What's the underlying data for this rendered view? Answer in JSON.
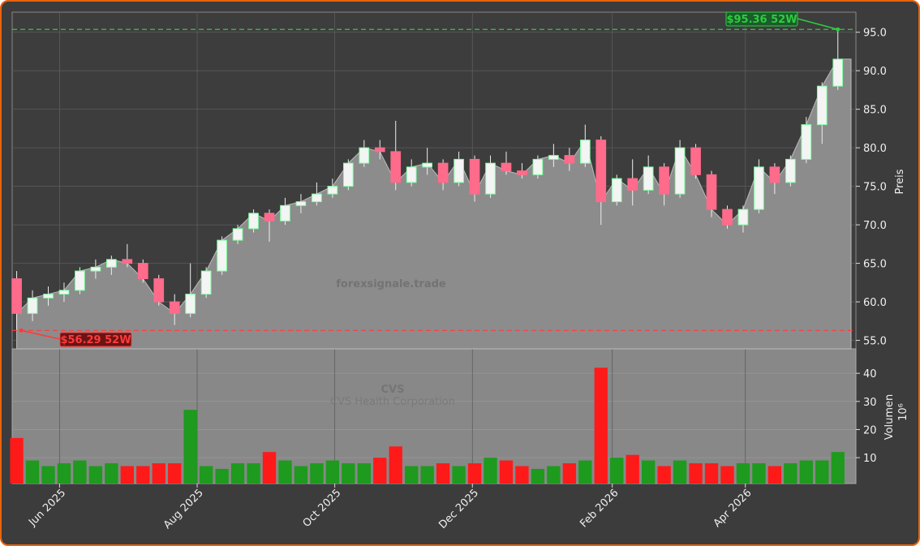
{
  "chart_data": {
    "type": "candlestick",
    "watermark": "forexsignale.trade",
    "symbol": "CVS",
    "company": "CVS Health Corporation",
    "x": [
      2,
      9,
      16,
      23,
      30,
      37,
      44,
      51,
      58,
      65,
      72,
      79,
      86,
      93,
      100,
      107,
      114,
      121,
      128,
      135,
      142,
      149,
      156,
      163,
      170,
      177,
      184,
      191,
      198,
      205,
      212,
      219,
      226,
      233,
      240,
      247,
      254,
      261,
      268,
      275,
      282,
      289,
      296,
      303,
      310,
      317,
      324,
      331,
      338,
      345,
      352,
      359,
      366
    ],
    "open": [
      63.0,
      58.5,
      60.5,
      61.0,
      61.5,
      64.0,
      64.5,
      65.5,
      65.0,
      63.0,
      60.0,
      58.5,
      61.0,
      64.0,
      68.0,
      69.5,
      71.5,
      70.5,
      72.5,
      73.0,
      74.0,
      75.0,
      78.0,
      80.0,
      79.5,
      75.5,
      77.5,
      78.0,
      75.5,
      78.5,
      74.0,
      78.0,
      77.0,
      76.5,
      78.5,
      79.0,
      78.0,
      81.0,
      73.0,
      76.0,
      74.5,
      77.5,
      74.0,
      80.0,
      76.5,
      72.0,
      70.0,
      72.0,
      77.5,
      75.5,
      78.5,
      83.0,
      88.0
    ],
    "high": [
      64.0,
      61.5,
      62.0,
      62.5,
      64.5,
      65.5,
      66.0,
      67.5,
      65.5,
      63.5,
      61.0,
      65.0,
      64.5,
      68.5,
      70.0,
      72.0,
      72.0,
      73.5,
      74.0,
      75.5,
      76.0,
      78.5,
      81.0,
      81.0,
      83.5,
      78.5,
      80.0,
      78.5,
      79.5,
      79.0,
      79.0,
      79.5,
      78.0,
      79.0,
      80.5,
      80.0,
      83.0,
      81.5,
      76.5,
      78.5,
      79.0,
      78.0,
      81.0,
      80.5,
      77.0,
      72.5,
      72.5,
      78.5,
      78.0,
      79.0,
      84.0,
      88.5,
      95.36
    ],
    "low": [
      56.29,
      57.5,
      59.5,
      60.0,
      61.0,
      63.0,
      63.5,
      64.5,
      62.5,
      59.5,
      57.0,
      58.0,
      60.5,
      63.5,
      67.5,
      69.0,
      67.8,
      70.0,
      71.5,
      72.5,
      73.5,
      74.5,
      77.5,
      78.5,
      74.5,
      75.0,
      76.5,
      74.5,
      75.0,
      73.0,
      73.5,
      76.5,
      76.0,
      76.0,
      77.5,
      77.0,
      77.5,
      70.0,
      72.5,
      72.5,
      74.0,
      72.5,
      73.5,
      76.0,
      71.0,
      69.5,
      69.0,
      71.5,
      74.0,
      75.0,
      78.0,
      80.5,
      87.5
    ],
    "close": [
      58.5,
      60.5,
      61.0,
      61.5,
      64.0,
      64.5,
      65.5,
      65.0,
      63.0,
      60.0,
      58.5,
      61.0,
      64.0,
      68.0,
      69.5,
      71.5,
      70.5,
      72.5,
      73.0,
      74.0,
      75.0,
      78.0,
      80.0,
      79.5,
      75.5,
      77.5,
      78.0,
      75.5,
      78.5,
      74.0,
      78.0,
      77.0,
      76.5,
      78.5,
      79.0,
      78.0,
      81.0,
      73.0,
      76.0,
      74.5,
      77.5,
      74.0,
      80.0,
      76.5,
      72.0,
      70.0,
      72.0,
      77.5,
      75.5,
      78.5,
      83.0,
      88.0,
      91.5
    ],
    "volume": [
      17,
      9,
      7,
      8,
      9,
      7,
      8,
      7,
      7,
      8,
      8,
      27,
      7,
      6,
      8,
      8,
      12,
      9,
      7,
      8,
      9,
      8,
      8,
      10,
      14,
      7,
      7,
      8,
      7,
      8,
      10,
      9,
      7,
      6,
      7,
      8,
      9,
      42,
      10,
      11,
      9,
      7,
      9,
      8,
      8,
      7,
      8,
      8,
      7,
      8,
      9,
      9,
      12
    ],
    "xlim": [
      0,
      374
    ],
    "xticks": [
      {
        "value": 21,
        "label": "Jun 2025"
      },
      {
        "value": 82,
        "label": "Aug 2025"
      },
      {
        "value": 143,
        "label": "Oct 2025"
      },
      {
        "value": 204,
        "label": "Dec 2025"
      },
      {
        "value": 266,
        "label": "Feb 2026"
      },
      {
        "value": 325,
        "label": "Apr 2026"
      }
    ],
    "ylim": [
      53.9,
      97.6
    ],
    "yticks": [
      {
        "value": 55,
        "label": "55.0"
      },
      {
        "value": 60,
        "label": "60.0"
      },
      {
        "value": 65,
        "label": "65.0"
      },
      {
        "value": 70,
        "label": "70.0"
      },
      {
        "value": 75,
        "label": "75.0"
      },
      {
        "value": 80,
        "label": "80.0"
      },
      {
        "value": 85,
        "label": "85.0"
      },
      {
        "value": 90,
        "label": "90.0"
      },
      {
        "value": 95,
        "label": "95.0"
      }
    ],
    "ylabel": "Preis",
    "volume_ylim": [
      0.8,
      48.7
    ],
    "volume_yticks": [
      10,
      20,
      30,
      40
    ],
    "volume_ylabel": "Volumen",
    "volume_unit": "10⁶",
    "up_color": "#1e9a1e",
    "down_color": "#ff1a1a",
    "grid": true,
    "annotations": [
      {
        "label": "$95.36 52W",
        "value": 95.36,
        "x": 366,
        "color": "#2ecc40"
      },
      {
        "label": "$56.29 52W",
        "value": 56.29,
        "x": 4,
        "color": "#ff3b3b"
      }
    ]
  }
}
